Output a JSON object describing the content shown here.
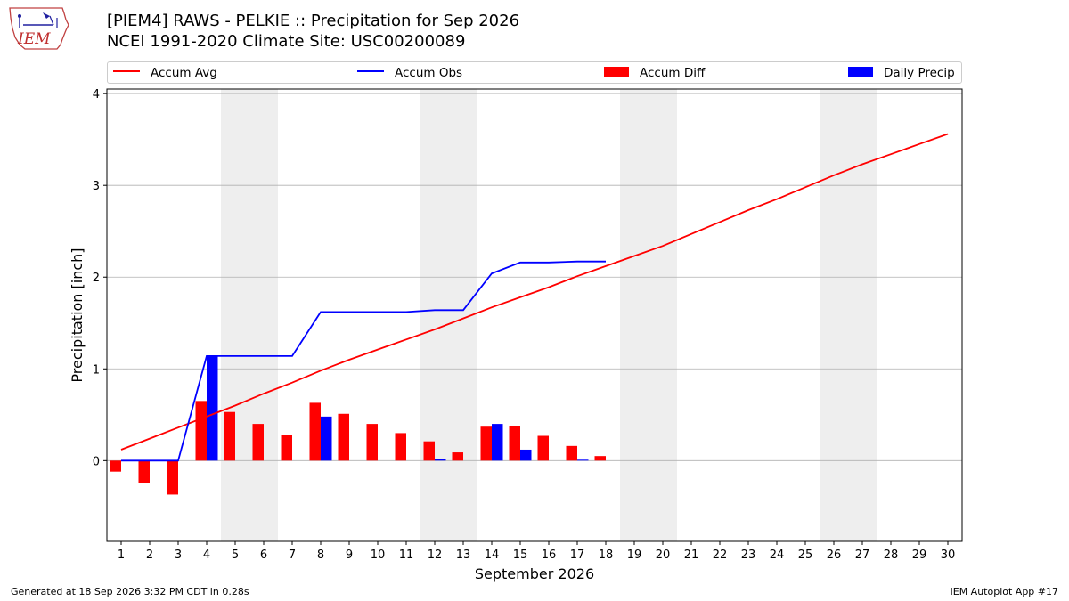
{
  "header": {
    "logo_text": "IEM",
    "title_line1": "[PIEM4] RAWS - PELKIE :: Precipitation for Sep 2026",
    "title_line2": "NCEI 1991-2020 Climate Site: USC00200089"
  },
  "footer": {
    "generated": "Generated at 18 Sep 2026 3:32 PM CDT in 0.28s",
    "app": "IEM Autoplot App #17"
  },
  "colors": {
    "avg": "#ff0000",
    "obs": "#0000ff",
    "diff": "#ff0000",
    "daily": "#0000ff",
    "weekend_shade": "#eeeeee",
    "grid": "#b0b0b0"
  },
  "chart_data": {
    "type": "bar",
    "title": "[PIEM4] RAWS - PELKIE :: Precipitation for Sep 2026",
    "subtitle": "NCEI 1991-2020 Climate Site: USC00200089",
    "xlabel": "September 2026",
    "ylabel": "Precipitation [inch]",
    "x": [
      1,
      2,
      3,
      4,
      5,
      6,
      7,
      8,
      9,
      10,
      11,
      12,
      13,
      14,
      15,
      16,
      17,
      18,
      19,
      20,
      21,
      22,
      23,
      24,
      25,
      26,
      27,
      28,
      29,
      30
    ],
    "xlim": [
      0.5,
      30.5
    ],
    "ylim": [
      -0.88,
      4.05
    ],
    "yticks": [
      0,
      1,
      2,
      3,
      4
    ],
    "grid": true,
    "legend_position": "top",
    "shaded_days": [
      [
        5,
        6
      ],
      [
        12,
        13
      ],
      [
        19,
        20
      ],
      [
        26,
        27
      ]
    ],
    "series": [
      {
        "name": "Accum Avg",
        "type": "line",
        "x": [
          1,
          2,
          3,
          4,
          5,
          6,
          7,
          8,
          9,
          10,
          11,
          12,
          13,
          14,
          15,
          16,
          17,
          18,
          19,
          20,
          21,
          22,
          23,
          24,
          25,
          26,
          27,
          28,
          29,
          30
        ],
        "values": [
          0.12,
          0.24,
          0.36,
          0.48,
          0.6,
          0.73,
          0.85,
          0.98,
          1.1,
          1.21,
          1.32,
          1.43,
          1.55,
          1.67,
          1.78,
          1.89,
          2.01,
          2.12,
          2.23,
          2.34,
          2.47,
          2.6,
          2.73,
          2.85,
          2.98,
          3.11,
          3.23,
          3.34,
          3.45,
          3.56
        ]
      },
      {
        "name": "Accum Obs",
        "type": "line",
        "x": [
          1,
          2,
          3,
          4,
          5,
          6,
          7,
          8,
          9,
          10,
          11,
          12,
          13,
          14,
          15,
          16,
          17,
          18
        ],
        "values": [
          0.0,
          0.0,
          0.0,
          1.14,
          1.14,
          1.14,
          1.14,
          1.62,
          1.62,
          1.62,
          1.62,
          1.64,
          1.64,
          2.04,
          2.16,
          2.16,
          2.17,
          2.17
        ]
      },
      {
        "name": "Accum Diff",
        "type": "bar",
        "x": [
          1,
          2,
          3,
          4,
          5,
          6,
          7,
          8,
          9,
          10,
          11,
          12,
          13,
          14,
          15,
          16,
          17,
          18
        ],
        "values": [
          -0.12,
          -0.24,
          -0.37,
          0.65,
          0.53,
          0.4,
          0.28,
          0.63,
          0.51,
          0.4,
          0.3,
          0.21,
          0.09,
          0.37,
          0.38,
          0.27,
          0.16,
          0.05
        ]
      },
      {
        "name": "Daily Precip",
        "type": "bar",
        "x": [
          1,
          2,
          3,
          4,
          5,
          6,
          7,
          8,
          9,
          10,
          11,
          12,
          13,
          14,
          15,
          16,
          17,
          18
        ],
        "values": [
          0.0,
          0.0,
          0.0,
          1.14,
          0.0,
          0.0,
          0.0,
          0.48,
          0.0,
          0.0,
          0.0,
          0.02,
          0.0,
          0.4,
          0.12,
          0.0,
          0.01,
          0.0
        ]
      }
    ]
  }
}
